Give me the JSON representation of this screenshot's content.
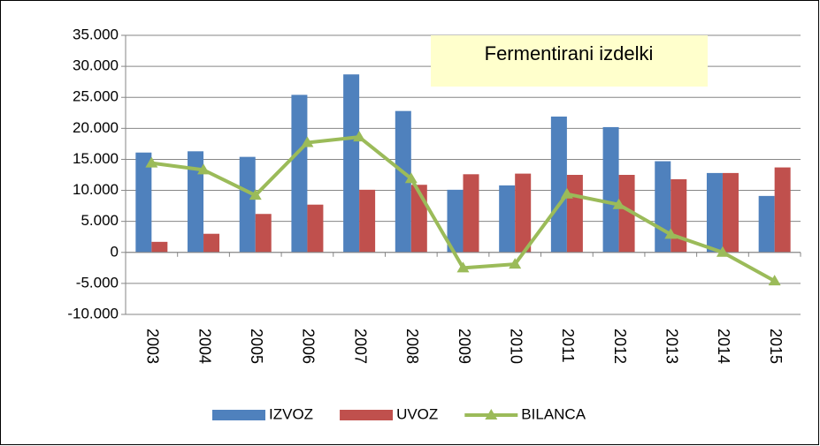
{
  "chart_data": {
    "type": "bar_line",
    "title": "Fermentirani izdelki",
    "categories": [
      "2003",
      "2004",
      "2005",
      "2006",
      "2007",
      "2008",
      "2009",
      "2010",
      "2011",
      "2012",
      "2013",
      "2014",
      "2015"
    ],
    "series": [
      {
        "name": "IZVOZ",
        "type": "bar",
        "color": "#4f81bd",
        "values": [
          16100,
          16300,
          15400,
          25400,
          28700,
          22800,
          10100,
          10800,
          21900,
          20200,
          14700,
          12800,
          9100
        ]
      },
      {
        "name": "UVOZ",
        "type": "bar",
        "color": "#c0504d",
        "values": [
          1700,
          3000,
          6200,
          7700,
          10100,
          10900,
          12600,
          12700,
          12500,
          12500,
          11800,
          12800,
          13700
        ]
      },
      {
        "name": "BILANCA",
        "type": "line",
        "color": "#9bbb59",
        "values": [
          14400,
          13300,
          9200,
          17700,
          18600,
          11900,
          -2500,
          -1900,
          9400,
          7700,
          2900,
          0,
          -4600
        ]
      }
    ],
    "ylim": [
      -10000,
      35000
    ],
    "yticks": [
      {
        "value": -10000,
        "label": "-10.000"
      },
      {
        "value": -5000,
        "label": "-5.000"
      },
      0,
      {
        "value": 5000,
        "label": "5.000"
      },
      {
        "value": 10000,
        "label": "10.000"
      },
      {
        "value": 15000,
        "label": "15.000"
      },
      {
        "value": 20000,
        "label": "20.000"
      },
      {
        "value": 25000,
        "label": "25.000"
      },
      {
        "value": 30000,
        "label": "30.000"
      },
      {
        "value": 35000,
        "label": "35.000"
      }
    ],
    "grid": true,
    "legend": "bottom"
  }
}
